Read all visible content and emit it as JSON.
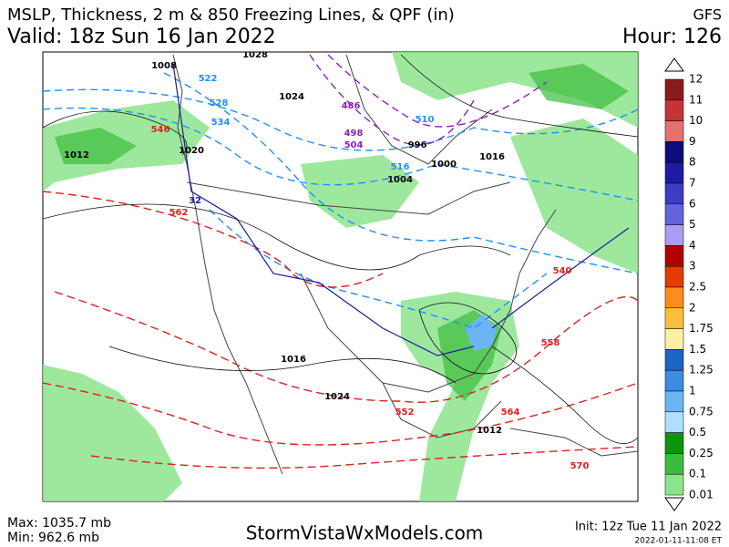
{
  "header": {
    "title": "MSLP, Thickness, 2 m & 850 Freezing Lines, & QPF (in)",
    "model": "GFS",
    "valid": "Valid: 18z Sun 16 Jan 2022",
    "hour": "Hour: 126"
  },
  "colorbar": {
    "levels": [
      12,
      11,
      10,
      9,
      8,
      7,
      6,
      5,
      4,
      3,
      2.5,
      2,
      1.75,
      1.5,
      1.25,
      1,
      0.75,
      0.5,
      0.25,
      0.1,
      0.01
    ],
    "colors": [
      "#8c1c1c",
      "#c43434",
      "#e47070",
      "#0c0c7c",
      "#1c1ca4",
      "#3c3cc4",
      "#6464dc",
      "#a89cf4",
      "#b40000",
      "#e43c00",
      "#fc8c1c",
      "#fcbc3c",
      "#fcf0a4",
      "#1c64c4",
      "#3c8ce4",
      "#6cb4f4",
      "#ace0fc",
      "#0c940c",
      "#3cbc3c",
      "#8ce48c"
    ]
  },
  "map_labels": [
    {
      "text": "1008",
      "color": "#000000"
    },
    {
      "text": "522",
      "color": "#1e90ff"
    },
    {
      "text": "528",
      "color": "#1e90ff"
    },
    {
      "text": "534",
      "color": "#1e90ff"
    },
    {
      "text": "546",
      "color": "#e02020"
    },
    {
      "text": "1012",
      "color": "#000000"
    },
    {
      "text": "1024",
      "color": "#000000"
    },
    {
      "text": "1020",
      "color": "#000000"
    },
    {
      "text": "562",
      "color": "#e02020"
    },
    {
      "text": "32",
      "color": "#1c1ca4"
    },
    {
      "text": "486",
      "color": "#9020c0"
    },
    {
      "text": "498",
      "color": "#9020c0"
    },
    {
      "text": "504",
      "color": "#9020c0"
    },
    {
      "text": "510",
      "color": "#1e90ff"
    },
    {
      "text": "516",
      "color": "#1e90ff"
    },
    {
      "text": "996",
      "color": "#000000"
    },
    {
      "text": "1004",
      "color": "#000000"
    },
    {
      "text": "1000",
      "color": "#000000"
    },
    {
      "text": "1016",
      "color": "#000000"
    },
    {
      "text": "552",
      "color": "#e02020"
    },
    {
      "text": "558",
      "color": "#e02020"
    },
    {
      "text": "564",
      "color": "#e02020"
    },
    {
      "text": "570",
      "color": "#e02020"
    },
    {
      "text": "1028",
      "color": "#000000"
    },
    {
      "text": "540",
      "color": "#e02020"
    },
    {
      "text": "1024",
      "color": "#000000"
    },
    {
      "text": "1012",
      "color": "#000000"
    },
    {
      "text": "1016",
      "color": "#000000"
    }
  ],
  "footer": {
    "max": "Max: 1035.7 mb",
    "min": "Min: 962.6 mb",
    "site": "StormVistaWxModels.com",
    "init": "Init: 12z Tue 11 Jan 2022",
    "stamp": "2022-01-11-11:08 ET"
  }
}
